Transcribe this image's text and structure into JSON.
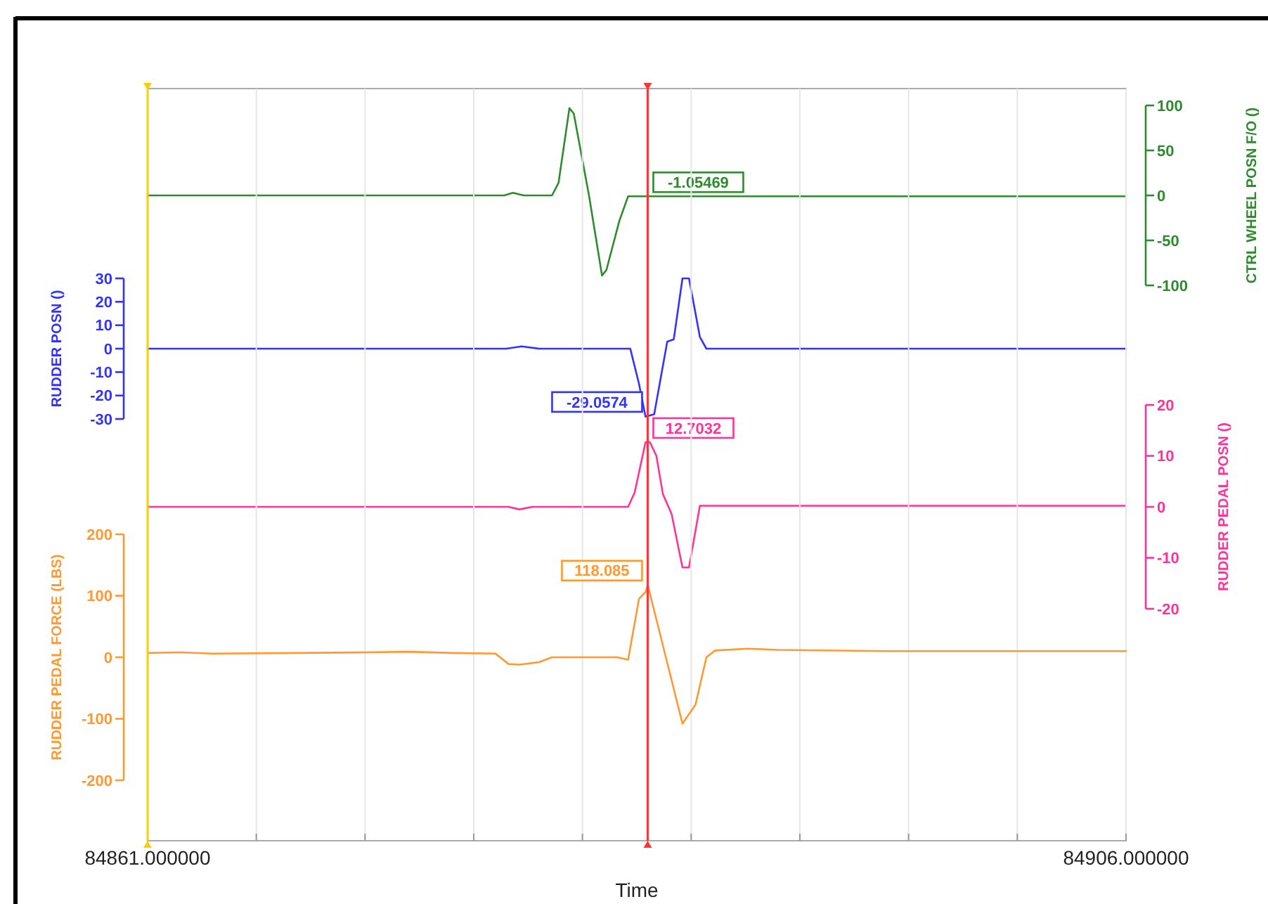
{
  "chart_data": [
    {
      "type": "line",
      "xlim": [
        84861,
        84906
      ],
      "tick_labels": "y",
      "y2label": "CTRL WHEEL POSN F/O ()",
      "y2lim": [
        -100,
        100
      ],
      "y2ticks": [
        -100,
        -50,
        0,
        50,
        100
      ],
      "series": [
        {
          "color": "#2e8b2e",
          "axis": "y2",
          "x": [
            84861,
            84877.4,
            84877.8,
            84878.3,
            84879.6,
            84879.9,
            84880.4,
            84880.6,
            84881.3,
            84881.9,
            84882.1,
            84882.7,
            84883.1,
            84884,
            84906
          ],
          "values": [
            0,
            0,
            3,
            0,
            0,
            14,
            97,
            91,
            0,
            -89,
            -83,
            -28,
            -1,
            -1,
            -1
          ]
        }
      ],
      "annotations": [
        "-1.05469"
      ]
    },
    {
      "type": "line",
      "xlim": [
        84861,
        84906
      ],
      "tick_labels": "y",
      "ylabel": "RUDDER POSN ()",
      "ylim": [
        -30,
        30
      ],
      "yticks": [
        -30,
        -20,
        -10,
        0,
        10,
        20,
        30
      ],
      "series": [
        {
          "color": "#3333ff",
          "x": [
            84861,
            84877.5,
            84878.2,
            84879,
            84883.2,
            84883.6,
            84883.9,
            84884.3,
            84884.9,
            84885.2,
            84885.6,
            84885.9,
            84886.4,
            84886.7,
            84906
          ],
          "values": [
            0,
            0,
            1,
            0,
            0,
            -15,
            -29,
            -28,
            3,
            4,
            30,
            30,
            5,
            0,
            0
          ]
        }
      ],
      "annotations": [
        "-29.0574"
      ]
    },
    {
      "type": "line",
      "xlim": [
        84861,
        84906
      ],
      "tick_labels": "y",
      "y2label": "RUDDER PEDAL POSN ()",
      "y2lim": [
        -20,
        20
      ],
      "y2ticks": [
        -20,
        -10,
        0,
        10,
        20
      ],
      "series": [
        {
          "color": "#ff3399",
          "axis": "y2",
          "x": [
            84861,
            84877.6,
            84878.1,
            84878.7,
            84883.1,
            84883.4,
            84883.9,
            84884.1,
            84884.4,
            84884.7,
            84885.1,
            84885.6,
            84885.9,
            84886.4,
            84906
          ],
          "values": [
            0,
            0,
            -0.5,
            0,
            0,
            2.8,
            12.7,
            12.7,
            10,
            2.5,
            -1.4,
            -11.9,
            -11.9,
            0.2,
            0.2
          ]
        }
      ],
      "annotations": [
        "12.7032"
      ]
    },
    {
      "type": "line",
      "xlim": [
        84861,
        84906
      ],
      "xlabel": "Time",
      "xticks": [
        {
          "value": 84861,
          "label": "84861.000000"
        },
        {
          "value": 84866,
          "label": null
        },
        {
          "value": 84871,
          "label": null
        },
        {
          "value": 84876,
          "label": null
        },
        {
          "value": 84881,
          "label": null
        },
        {
          "value": 84886,
          "label": null
        },
        {
          "value": 84891,
          "label": null
        },
        {
          "value": 84896,
          "label": null
        },
        {
          "value": 84901,
          "label": null
        },
        {
          "value": 84906,
          "label": "84906.000000"
        }
      ],
      "grid": "x",
      "ylabel": "RUDDER PEDAL FORCE (LBS)",
      "ylim": [
        -200,
        200
      ],
      "yticks": [
        -200,
        -100,
        0,
        100,
        200
      ],
      "series": [
        {
          "color": "#ff9933",
          "x": [
            84861,
            84862.5,
            84864,
            84868,
            84871,
            84873,
            84875,
            84877,
            84877.6,
            84878.1,
            84879,
            84879.6,
            84882.6,
            84883.1,
            84883.6,
            84883.9,
            84884,
            84885.6,
            84886.2,
            84886.7,
            84887.1,
            84888.6,
            84890,
            84895,
            84906
          ],
          "values": [
            7,
            8,
            6,
            7,
            8,
            9,
            7,
            6,
            -11,
            -12,
            -8,
            0,
            0,
            -4,
            95,
            106,
            118,
            -108,
            -77,
            0,
            11,
            14,
            12,
            10,
            10
          ]
        }
      ],
      "annotations": [
        "118.085"
      ],
      "ref_lines": [
        {
          "axis": "x",
          "value": 84861,
          "color": "#ffcc00"
        },
        {
          "axis": "x",
          "value": 84884,
          "color": "#ff3333"
        }
      ]
    }
  ]
}
